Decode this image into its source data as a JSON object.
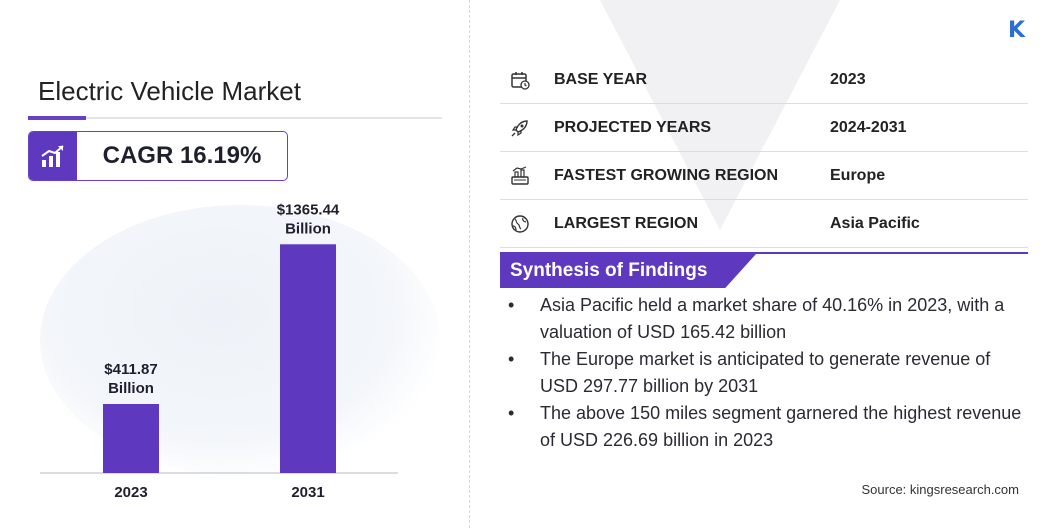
{
  "logo": "K",
  "title": "Electric Vehicle Market",
  "cagr": "CAGR 16.19%",
  "chart_data": {
    "type": "bar",
    "categories": [
      "2023",
      "2031"
    ],
    "values": [
      411.87,
      1365.44
    ],
    "value_labels": [
      "$411.87",
      "$1365.44"
    ],
    "unit_label": "Billion",
    "ylim": [
      0,
      1600
    ],
    "grid": false,
    "color": "#5e38be"
  },
  "info": [
    {
      "icon": "calendar-icon",
      "label": "BASE YEAR",
      "value": "2023"
    },
    {
      "icon": "rocket-icon",
      "label": "PROJECTED YEARS",
      "value": "2024-2031"
    },
    {
      "icon": "region-growth-icon",
      "label": "FASTEST GROWING REGION",
      "value": "Europe"
    },
    {
      "icon": "globe-icon",
      "label": "LARGEST REGION",
      "value": "Asia Pacific"
    }
  ],
  "synthesis": {
    "title": "Synthesis of Findings",
    "bullet": "•",
    "items": [
      "Asia Pacific held a market share of 40.16% in 2023, with a valuation of USD 165.42 billion",
      "The Europe market is anticipated to generate revenue of USD 297.77 billion by 2031",
      "The above 150 miles segment garnered the highest revenue of USD 226.69 billion in 2023"
    ]
  },
  "source": "Source:  kingsresearch.com",
  "colors": {
    "accent": "#5e38be",
    "logo": "#2b6fd6"
  }
}
